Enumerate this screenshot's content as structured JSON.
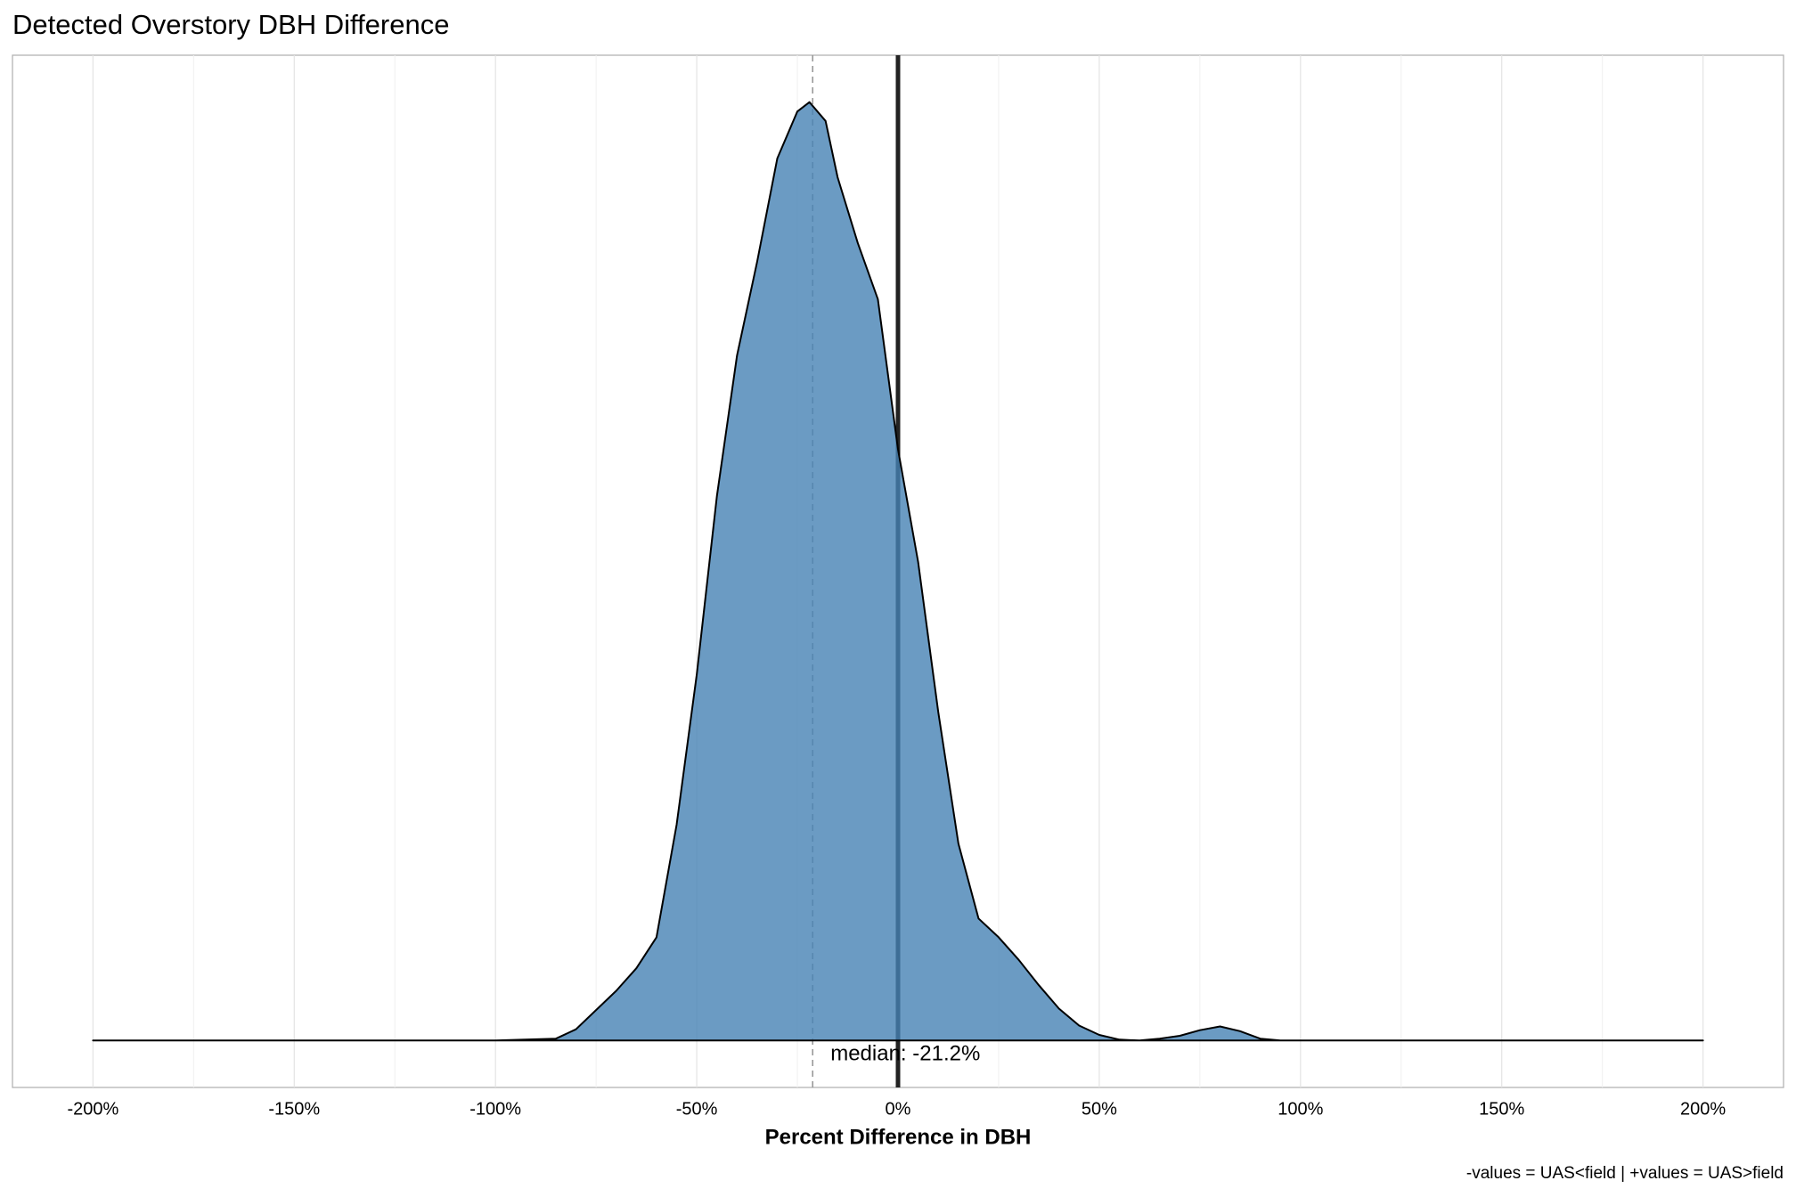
{
  "chart_data": {
    "type": "density",
    "title": "Detected Overstory DBH Difference",
    "x_label": "Percent Difference in DBH",
    "caption": "-values = UAS<field | +values = UAS>field",
    "x": [
      -200,
      -100,
      -85,
      -80,
      -70,
      -65,
      -60,
      -55,
      -50,
      -45,
      -40,
      -35,
      -30,
      -25,
      -22,
      -18,
      -15,
      -10,
      -5,
      0,
      5,
      10,
      15,
      20,
      25,
      30,
      35,
      40,
      45,
      50,
      55,
      60,
      65,
      70,
      75,
      80,
      85,
      90,
      95,
      200
    ],
    "values": [
      0,
      0,
      2e-05,
      0.00012,
      0.00053,
      0.00077,
      0.0011,
      0.0023,
      0.0039,
      0.0058,
      0.0073,
      0.0083,
      0.0094,
      0.0099,
      0.01,
      0.0098,
      0.0092,
      0.0085,
      0.0079,
      0.0063,
      0.0051,
      0.0035,
      0.0021,
      0.0013,
      0.0011,
      0.00086,
      0.00059,
      0.00034,
      0.00016,
      6e-05,
      1e-05,
      0,
      2e-05,
      5e-05,
      0.00011,
      0.00015,
      0.0001,
      2e-05,
      0,
      0
    ],
    "color": "#4682b4",
    "fill_opacity": 0.8,
    "median": -21.2,
    "median_label": "median: -21.2%",
    "reference_x": 0,
    "xlim": [
      -220,
      220
    ],
    "ylim": [
      -0.0005,
      0.0105
    ],
    "xticks": [
      {
        "value": -200,
        "label": "-200%"
      },
      {
        "value": -150,
        "label": "-150%"
      },
      {
        "value": -100,
        "label": "-100%"
      },
      {
        "value": -50,
        "label": "-50%"
      },
      {
        "value": 0,
        "label": "0%"
      },
      {
        "value": 50,
        "label": "50%"
      },
      {
        "value": 100,
        "label": "100%"
      },
      {
        "value": 150,
        "label": "150%"
      },
      {
        "value": 200,
        "label": "200%"
      }
    ],
    "minor_xticks": [
      -175,
      -125,
      -75,
      -25,
      25,
      75,
      125,
      175
    ],
    "grid": true
  }
}
